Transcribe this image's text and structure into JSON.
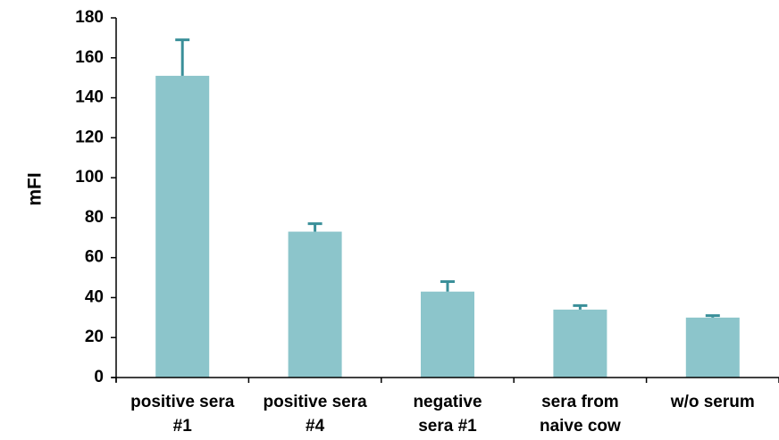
{
  "chart_data": {
    "type": "bar",
    "categories": [
      [
        "positive sera",
        "#1"
      ],
      [
        "positive sera",
        "#4"
      ],
      [
        "negative",
        "sera #1"
      ],
      [
        "sera from",
        "naive cow"
      ],
      [
        "w/o serum"
      ]
    ],
    "values": [
      151,
      73,
      43,
      34,
      30
    ],
    "error_upper": [
      169,
      77,
      48,
      36,
      31
    ],
    "ylabel": "mFI",
    "ylim": [
      0,
      180
    ],
    "yticks": [
      0,
      20,
      40,
      60,
      80,
      100,
      120,
      140,
      160,
      180
    ],
    "grid": false,
    "legend": "none",
    "colors": {
      "bar": "#8cc5cb",
      "error_bar": "#3a8f99",
      "axis": "#000000"
    }
  }
}
